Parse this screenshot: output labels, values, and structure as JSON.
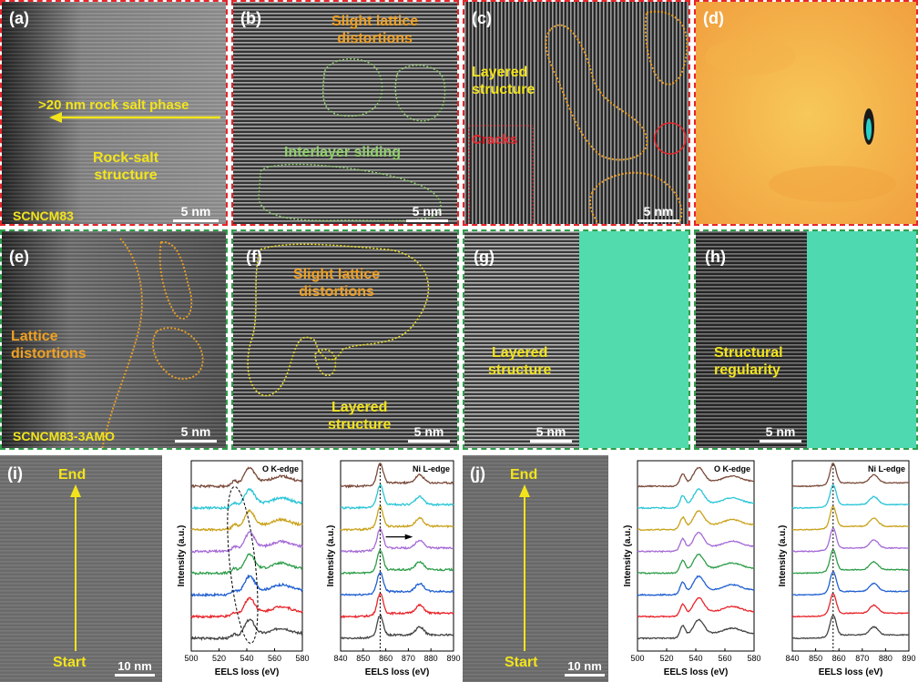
{
  "colors": {
    "yellow": "#f2e41c",
    "orange": "#f0a020",
    "green": "#8fd06a",
    "red": "#e8242a",
    "spectra": [
      "#444444",
      "#e8242a",
      "#1f5fd1",
      "#2e9e4a",
      "#a56ad6",
      "#c9a21a",
      "#29c5d6",
      "#7a4a3a"
    ]
  },
  "panels": {
    "a": {
      "label": "(a)",
      "annotation": ">20 nm rock salt phase",
      "structure": "Rock-salt structure",
      "structure_l1": "Rock-salt",
      "structure_l2": "structure",
      "sample": "SCNCM83",
      "scale": "5 nm"
    },
    "b": {
      "label": "(b)",
      "distortion_l1": "Slight lattice",
      "distortion_l2": "distortions",
      "sliding": "Interlayer sliding",
      "scale": "5 nm"
    },
    "c": {
      "label": "(c)",
      "layered_l1": "Layered",
      "layered_l2": "structure",
      "cracks": "Cracks",
      "scale": "5 nm"
    },
    "d": {
      "label": "(d)"
    },
    "e": {
      "label": "(e)",
      "distortion_l1": "Lattice",
      "distortion_l2": "distortions",
      "sample": "SCNCM83-3AMO",
      "scale": "5 nm"
    },
    "f": {
      "label": "(f)",
      "distortion_l1": "Slight lattice",
      "distortion_l2": "distortions",
      "layered_l1": "Layered",
      "layered_l2": "structure",
      "scale": "5 nm"
    },
    "g": {
      "label": "(g)",
      "layered_l1": "Layered",
      "layered_l2": "structure",
      "scale": "5 nm"
    },
    "h": {
      "label": "(h)",
      "regularity_l1": "Structural",
      "regularity_l2": "regularity",
      "scale": "5 nm"
    },
    "i": {
      "label": "(i)",
      "end": "End",
      "start": "Start",
      "scale": "10 nm"
    },
    "j": {
      "label": "(j)",
      "end": "End",
      "start": "Start",
      "scale": "10 nm"
    }
  },
  "chart_data": [
    {
      "id": "i-O",
      "type": "line",
      "title": "O K-edge",
      "edge": "O",
      "edge_suffix": "K-edge",
      "xlabel": "EELS loss (eV)",
      "ylabel": "Intensity (a.u.)",
      "xlim": [
        500,
        580
      ],
      "xticks": [
        500,
        520,
        540,
        560,
        580
      ],
      "n_spectra": 8,
      "peaks_eV": [
        531,
        542,
        565
      ],
      "annotation": "dashed ellipse marking the pre-edge region near 530-545 eV"
    },
    {
      "id": "i-Ni",
      "type": "line",
      "title": "Ni L-edge",
      "edge": "Ni",
      "edge_suffix": "L-edge",
      "xlabel": "EELS loss (eV)",
      "ylabel": "Intensity (a.u.)",
      "xlim": [
        840,
        890
      ],
      "xticks": [
        840,
        850,
        860,
        870,
        880,
        890
      ],
      "n_spectra": 8,
      "peaks_eV": [
        857,
        875
      ],
      "reference_line_eV": 857.5,
      "annotation": "arrow indicating shift to higher energy"
    },
    {
      "id": "j-O",
      "type": "line",
      "title": "O K-edge",
      "edge": "O",
      "edge_suffix": "K-edge",
      "xlabel": "EELS loss (eV)",
      "ylabel": "Intensity (a.u.)",
      "xlim": [
        500,
        580
      ],
      "xticks": [
        500,
        520,
        540,
        560,
        580
      ],
      "n_spectra": 8,
      "peaks_eV": [
        531,
        542,
        565
      ]
    },
    {
      "id": "j-Ni",
      "type": "line",
      "title": "Ni L-edge",
      "edge": "Ni",
      "edge_suffix": "L-edge",
      "xlabel": "EELS loss (eV)",
      "ylabel": "Intensity (a.u.)",
      "xlim": [
        840,
        890
      ],
      "xticks": [
        840,
        850,
        860,
        870,
        880,
        890
      ],
      "n_spectra": 8,
      "peaks_eV": [
        857,
        875
      ],
      "reference_line_eV": 857.5
    }
  ]
}
